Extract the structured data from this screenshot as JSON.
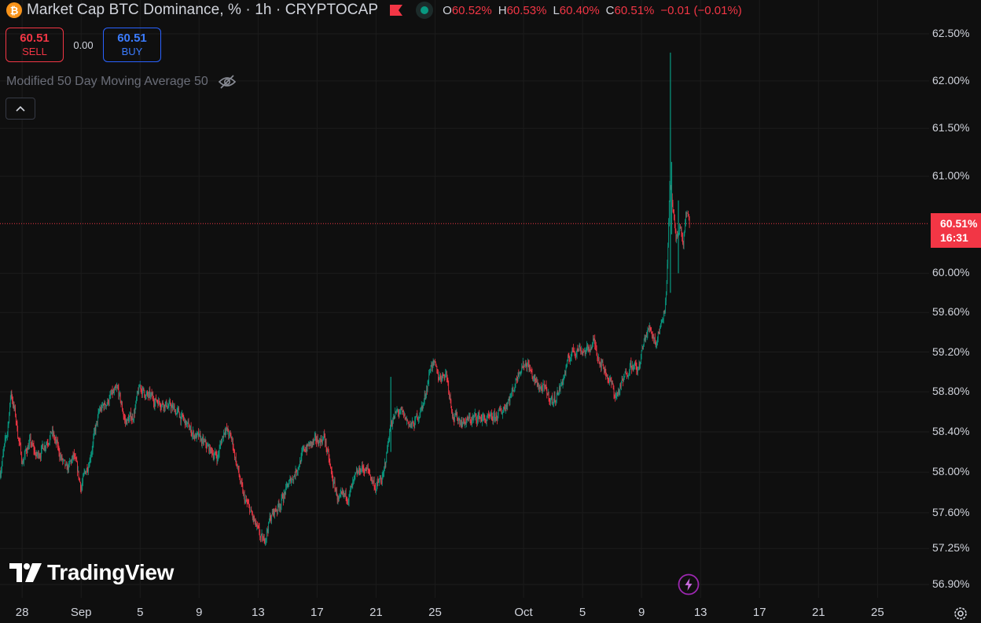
{
  "header": {
    "coin_symbol": "₿",
    "title": "Market Cap BTC Dominance, % · 1h · CRYPTOCAP",
    "ohlc": [
      {
        "label": "O",
        "value": "60.52%"
      },
      {
        "label": "H",
        "value": "60.53%"
      },
      {
        "label": "L",
        "value": "60.40%"
      },
      {
        "label": "C",
        "value": "60.51%"
      }
    ],
    "change": "−0.01 (−0.01%)"
  },
  "trade": {
    "sell_price": "60.51",
    "sell_label": "SELL",
    "spread": "0.00",
    "buy_price": "60.51",
    "buy_label": "BUY"
  },
  "indicator": {
    "name": "Modified 50 Day Moving Average 50"
  },
  "price_label": {
    "value": "60.51%",
    "countdown": "16:31"
  },
  "logo": {
    "text": "TradingView"
  },
  "colors": {
    "background": "#0f0f0f",
    "up": "#089981",
    "down": "#f23645",
    "grid": "#1c1c1c",
    "text": "#d1d4dc"
  },
  "icons": [
    "bitcoin-icon",
    "flag-icon",
    "status-dot-icon",
    "eye-off-icon",
    "chevron-up-icon",
    "flash-icon",
    "settings-icon"
  ],
  "chart_data": {
    "type": "candlestick",
    "title": "Market Cap BTC Dominance, % · 1h · CRYPTOCAP",
    "y_scale": "log",
    "ylim": [
      56.8,
      62.6
    ],
    "y_ticks": [
      "62.50%",
      "62.00%",
      "61.50%",
      "61.00%",
      "60.00%",
      "59.60%",
      "59.20%",
      "58.80%",
      "58.40%",
      "58.00%",
      "57.60%",
      "57.25%",
      "56.90%"
    ],
    "y_tick_values": [
      62.5,
      62.0,
      61.5,
      61.0,
      60.0,
      59.6,
      59.2,
      58.8,
      58.4,
      58.0,
      57.6,
      57.25,
      56.9
    ],
    "x_ticks": [
      "28",
      "Sep",
      "5",
      "9",
      "13",
      "17",
      "21",
      "25",
      "Oct",
      "5",
      "9",
      "13",
      "17",
      "21",
      "25"
    ],
    "x_tick_dates": [
      "2025-08-28",
      "2025-09-01",
      "2025-09-05",
      "2025-09-09",
      "2025-09-13",
      "2025-09-17",
      "2025-09-21",
      "2025-09-25",
      "2025-10-01",
      "2025-10-05",
      "2025-10-09",
      "2025-10-13",
      "2025-10-17",
      "2025-10-21",
      "2025-10-25"
    ],
    "x_range": [
      "2025-08-26 12:00",
      "2025-10-28 12:00"
    ],
    "last_value": 60.51,
    "grid": true,
    "path": [
      {
        "t": "2025-08-26 12:00",
        "v": 58.0
      },
      {
        "t": "2025-08-27 00:00",
        "v": 58.4
      },
      {
        "t": "2025-08-27 06:00",
        "v": 58.8
      },
      {
        "t": "2025-08-27 12:00",
        "v": 58.6
      },
      {
        "t": "2025-08-28 00:00",
        "v": 58.1
      },
      {
        "t": "2025-08-28 12:00",
        "v": 58.3
      },
      {
        "t": "2025-08-29 00:00",
        "v": 58.15
      },
      {
        "t": "2025-08-30 00:00",
        "v": 58.4
      },
      {
        "t": "2025-08-31 00:00",
        "v": 58.0
      },
      {
        "t": "2025-08-31 12:00",
        "v": 58.15
      },
      {
        "t": "2025-09-01 00:00",
        "v": 57.85
      },
      {
        "t": "2025-09-01 12:00",
        "v": 58.1
      },
      {
        "t": "2025-09-02 06:00",
        "v": 58.6
      },
      {
        "t": "2025-09-03 00:00",
        "v": 58.75
      },
      {
        "t": "2025-09-03 12:00",
        "v": 58.8
      },
      {
        "t": "2025-09-04 00:00",
        "v": 58.5
      },
      {
        "t": "2025-09-04 12:00",
        "v": 58.55
      },
      {
        "t": "2025-09-05 00:00",
        "v": 58.85
      },
      {
        "t": "2025-09-05 12:00",
        "v": 58.75
      },
      {
        "t": "2025-09-06 12:00",
        "v": 58.7
      },
      {
        "t": "2025-09-07 12:00",
        "v": 58.6
      },
      {
        "t": "2025-09-08 12:00",
        "v": 58.4
      },
      {
        "t": "2025-09-09 12:00",
        "v": 58.25
      },
      {
        "t": "2025-09-10 06:00",
        "v": 58.15
      },
      {
        "t": "2025-09-10 18:00",
        "v": 58.45
      },
      {
        "t": "2025-09-11 06:00",
        "v": 58.3
      },
      {
        "t": "2025-09-12 00:00",
        "v": 57.75
      },
      {
        "t": "2025-09-12 12:00",
        "v": 57.6
      },
      {
        "t": "2025-09-13 00:00",
        "v": 57.4
      },
      {
        "t": "2025-09-13 08:00",
        "v": 57.3
      },
      {
        "t": "2025-09-13 20:00",
        "v": 57.55
      },
      {
        "t": "2025-09-14 12:00",
        "v": 57.7
      },
      {
        "t": "2025-09-15 12:00",
        "v": 58.0
      },
      {
        "t": "2025-09-16 06:00",
        "v": 58.25
      },
      {
        "t": "2025-09-17 00:00",
        "v": 58.3
      },
      {
        "t": "2025-09-17 12:00",
        "v": 58.35
      },
      {
        "t": "2025-09-18 00:00",
        "v": 57.95
      },
      {
        "t": "2025-09-18 12:00",
        "v": 57.7
      },
      {
        "t": "2025-09-19 06:00",
        "v": 57.8
      },
      {
        "t": "2025-09-20 00:00",
        "v": 58.05
      },
      {
        "t": "2025-09-20 12:00",
        "v": 58.0
      },
      {
        "t": "2025-09-21 00:00",
        "v": 57.85
      },
      {
        "t": "2025-09-21 12:00",
        "v": 57.95
      },
      {
        "t": "2025-09-22 00:00",
        "v": 58.5
      },
      {
        "t": "2025-09-22 12:00",
        "v": 58.6
      },
      {
        "t": "2025-09-23 12:00",
        "v": 58.45
      },
      {
        "t": "2025-09-24 06:00",
        "v": 58.7
      },
      {
        "t": "2025-09-24 18:00",
        "v": 59.1
      },
      {
        "t": "2025-09-25 06:00",
        "v": 58.95
      },
      {
        "t": "2025-09-25 18:00",
        "v": 59.0
      },
      {
        "t": "2025-09-26 06:00",
        "v": 58.55
      },
      {
        "t": "2025-09-27 00:00",
        "v": 58.5
      },
      {
        "t": "2025-09-28 00:00",
        "v": 58.55
      },
      {
        "t": "2025-09-28 18:00",
        "v": 58.5
      },
      {
        "t": "2025-09-29 12:00",
        "v": 58.6
      },
      {
        "t": "2025-09-30 06:00",
        "v": 58.8
      },
      {
        "t": "2025-09-30 18:00",
        "v": 59.05
      },
      {
        "t": "2025-10-01 06:00",
        "v": 59.1
      },
      {
        "t": "2025-10-01 18:00",
        "v": 58.9
      },
      {
        "t": "2025-10-02 12:00",
        "v": 58.8
      },
      {
        "t": "2025-10-03 00:00",
        "v": 58.7
      },
      {
        "t": "2025-10-03 12:00",
        "v": 58.85
      },
      {
        "t": "2025-10-04 06:00",
        "v": 59.2
      },
      {
        "t": "2025-10-04 18:00",
        "v": 59.25
      },
      {
        "t": "2025-10-05 06:00",
        "v": 59.2
      },
      {
        "t": "2025-10-05 18:00",
        "v": 59.3
      },
      {
        "t": "2025-10-06 06:00",
        "v": 59.1
      },
      {
        "t": "2025-10-06 18:00",
        "v": 58.95
      },
      {
        "t": "2025-10-07 06:00",
        "v": 58.75
      },
      {
        "t": "2025-10-07 18:00",
        "v": 58.9
      },
      {
        "t": "2025-10-08 06:00",
        "v": 59.1
      },
      {
        "t": "2025-10-08 18:00",
        "v": 59.0
      },
      {
        "t": "2025-10-09 06:00",
        "v": 59.35
      },
      {
        "t": "2025-10-09 14:00",
        "v": 59.45
      },
      {
        "t": "2025-10-10 00:00",
        "v": 59.3
      },
      {
        "t": "2025-10-10 08:00",
        "v": 59.5
      },
      {
        "t": "2025-10-10 16:00",
        "v": 59.75
      },
      {
        "t": "2025-10-10 22:00",
        "v": 60.9
      },
      {
        "t": "2025-10-11 02:00",
        "v": 60.7
      },
      {
        "t": "2025-10-11 08:00",
        "v": 60.3
      },
      {
        "t": "2025-10-11 14:00",
        "v": 60.5
      },
      {
        "t": "2025-10-11 20:00",
        "v": 60.3
      },
      {
        "t": "2025-10-12 00:00",
        "v": 60.6
      },
      {
        "t": "2025-10-12 06:00",
        "v": 60.51
      }
    ],
    "spikes": [
      {
        "t": "2025-10-10 23:00",
        "high": 62.3,
        "low": 59.8
      },
      {
        "t": "2025-10-11 01:00",
        "high": 61.15,
        "low": 60.4
      },
      {
        "t": "2025-10-11 12:00",
        "high": 60.75,
        "low": 60.0
      },
      {
        "t": "2025-09-22 00:00",
        "high": 58.95,
        "low": 58.2
      }
    ]
  }
}
